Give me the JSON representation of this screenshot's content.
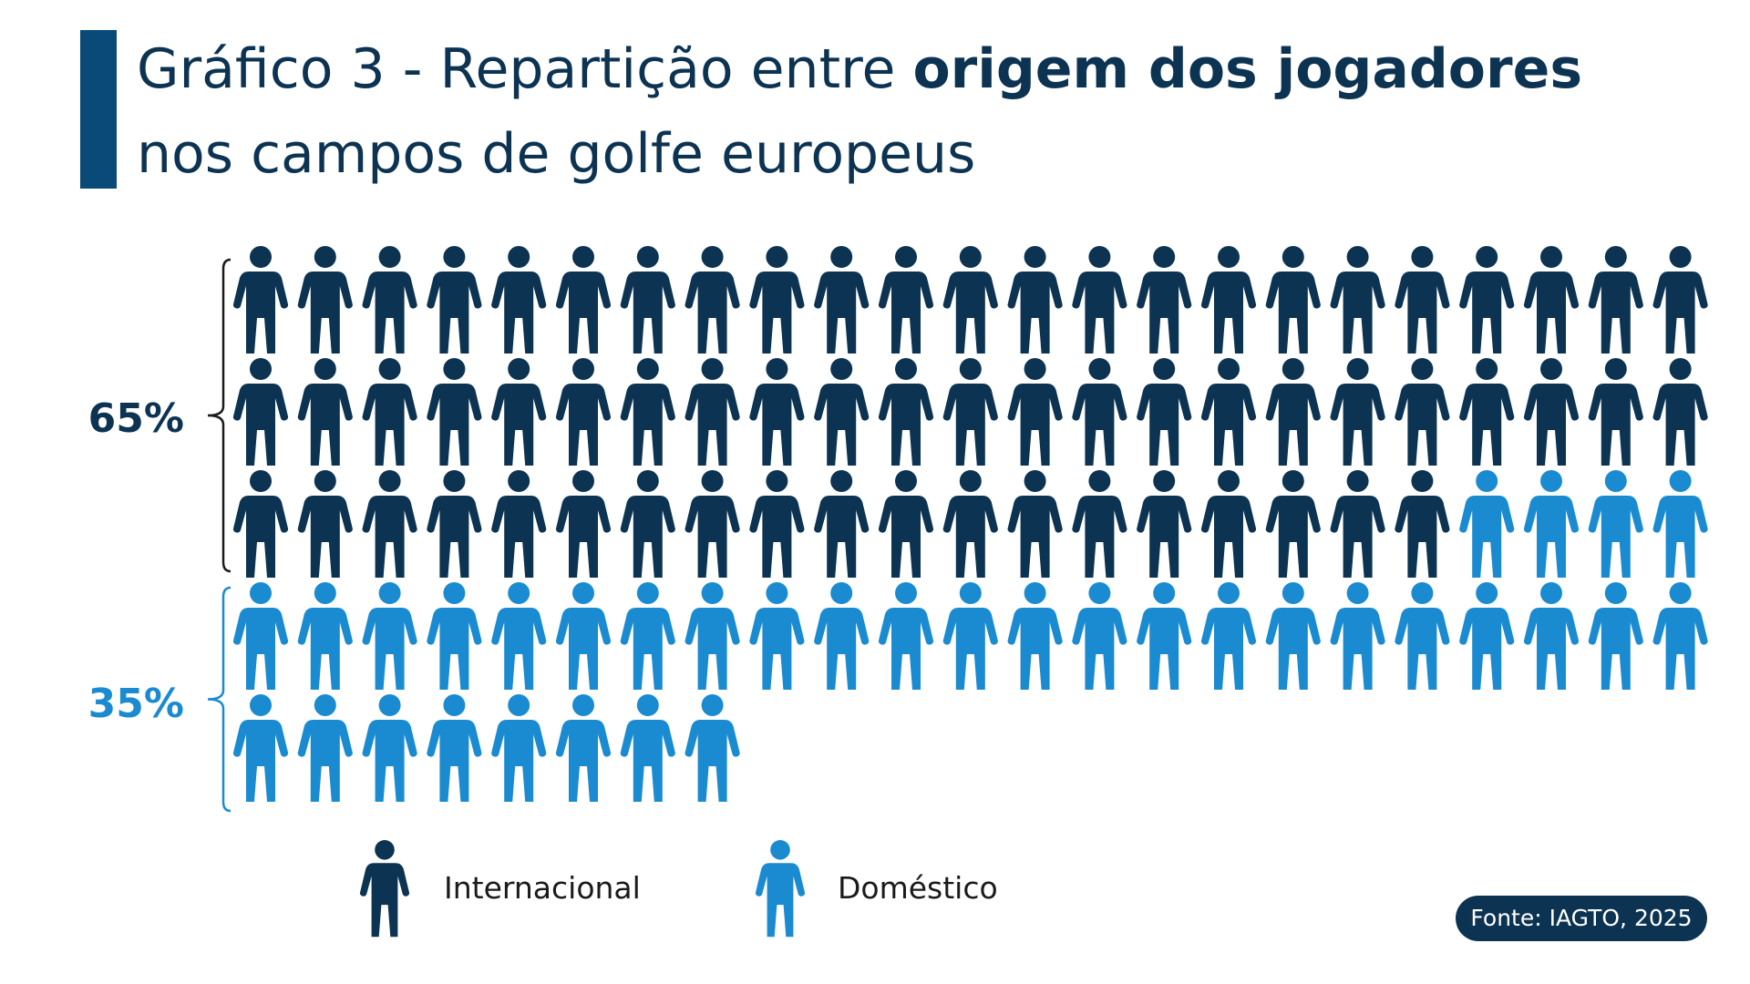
{
  "title": {
    "part1": "Gráfico 3 - Repartição entre ",
    "bold": "origem dos jogadores",
    "part2": "nos campos de golfe europeus"
  },
  "colors": {
    "internacional": "#0c3352",
    "domestico": "#1a8bd0",
    "accent_bar": "#0a4a78"
  },
  "chart_data": {
    "type": "pictogram",
    "icon": "person-icon",
    "icons_per_row": 23,
    "series": [
      {
        "name": "Internacional",
        "percent": "65%",
        "icon_count": 65,
        "color": "#0c3352"
      },
      {
        "name": "Doméstico",
        "percent": "35%",
        "icon_count": 35,
        "color": "#1a8bd0"
      }
    ]
  },
  "legend": [
    {
      "label": "Internacional",
      "icon": "person-icon"
    },
    {
      "label": "Doméstico",
      "icon": "person-icon"
    }
  ],
  "source": "Fonte: IAGTO, 2025"
}
